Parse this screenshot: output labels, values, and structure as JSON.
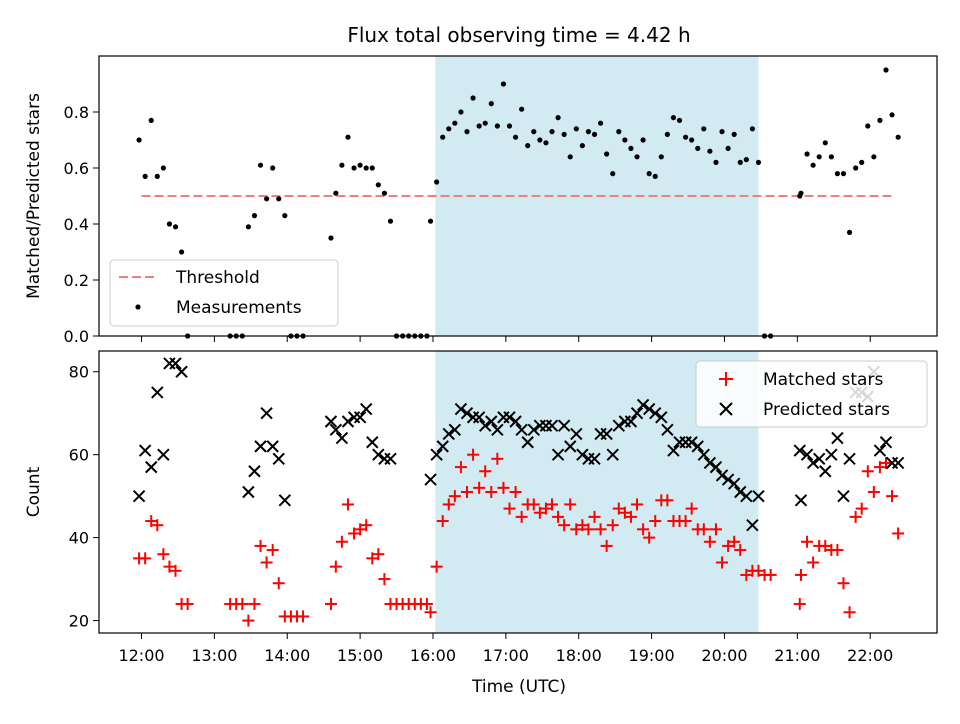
{
  "title": "Flux total observing time = 4.42 h",
  "colors": {
    "threshold": "#f08080",
    "measurement": "#000000",
    "matched": "#ff0000",
    "predicted": "#000000",
    "shade": "#add8e6"
  },
  "chart_data": [
    {
      "type": "scatter",
      "ylabel": "Matched/Predicted stars",
      "ylim": [
        0,
        1.0
      ],
      "yticks": [
        0.0,
        0.2,
        0.4,
        0.6,
        0.8
      ],
      "ytick_labels": [
        "0.0",
        "0.2",
        "0.4",
        "0.6",
        "0.8"
      ],
      "shaded_span": [
        "16:02",
        "20:28"
      ],
      "legend": {
        "position": "lower-left",
        "entries": [
          "Threshold",
          "Measurements"
        ]
      },
      "threshold": {
        "name": "Threshold",
        "value": 0.5,
        "x_range": [
          "12:00",
          "22:20"
        ]
      },
      "measurements": {
        "name": "Measurements",
        "x": [
          "11:58",
          "12:03",
          "12:08",
          "12:13",
          "12:18",
          "12:23",
          "12:28",
          "12:33",
          "12:38",
          "13:13",
          "13:18",
          "13:23",
          "13:28",
          "13:33",
          "13:38",
          "13:43",
          "13:48",
          "13:53",
          "13:58",
          "14:03",
          "14:08",
          "14:13",
          "14:36",
          "14:40",
          "14:45",
          "14:50",
          "14:55",
          "15:00",
          "15:05",
          "15:10",
          "15:15",
          "15:20",
          "15:25",
          "15:30",
          "15:35",
          "15:40",
          "15:45",
          "15:50",
          "15:55",
          "15:58",
          "16:03",
          "16:08",
          "16:13",
          "16:18",
          "16:23",
          "16:28",
          "16:33",
          "16:38",
          "16:43",
          "16:48",
          "16:53",
          "16:58",
          "17:03",
          "17:08",
          "17:13",
          "17:18",
          "17:23",
          "17:28",
          "17:33",
          "17:38",
          "17:43",
          "17:48",
          "17:53",
          "17:58",
          "18:03",
          "18:08",
          "18:13",
          "18:18",
          "18:23",
          "18:28",
          "18:33",
          "18:38",
          "18:43",
          "18:48",
          "18:53",
          "18:58",
          "19:03",
          "19:08",
          "19:13",
          "19:18",
          "19:23",
          "19:28",
          "19:33",
          "19:38",
          "19:43",
          "19:48",
          "19:53",
          "19:58",
          "20:03",
          "20:08",
          "20:13",
          "20:18",
          "20:23",
          "20:28",
          "20:33",
          "20:38",
          "21:02",
          "21:03",
          "21:08",
          "21:13",
          "21:18",
          "21:23",
          "21:28",
          "21:33",
          "21:38",
          "21:43",
          "21:48",
          "21:53",
          "21:58",
          "22:03",
          "22:08",
          "22:13",
          "22:18",
          "22:23"
        ],
        "y": [
          0.7,
          0.57,
          0.77,
          0.57,
          0.6,
          0.4,
          0.39,
          0.3,
          0.0,
          0.0,
          0.0,
          0.0,
          0.39,
          0.43,
          0.61,
          0.49,
          0.6,
          0.49,
          0.43,
          0.0,
          0.0,
          0.0,
          0.35,
          0.51,
          0.61,
          0.71,
          0.6,
          0.61,
          0.6,
          0.6,
          0.54,
          0.51,
          0.41,
          0.0,
          0.0,
          0.0,
          0.0,
          0.0,
          0.0,
          0.41,
          0.55,
          0.71,
          0.74,
          0.76,
          0.8,
          0.73,
          0.85,
          0.75,
          0.76,
          0.83,
          0.75,
          0.9,
          0.75,
          0.71,
          0.81,
          0.68,
          0.73,
          0.7,
          0.69,
          0.73,
          0.78,
          0.72,
          0.64,
          0.74,
          0.68,
          0.73,
          0.72,
          0.76,
          0.65,
          0.58,
          0.73,
          0.7,
          0.67,
          0.64,
          0.7,
          0.58,
          0.57,
          0.64,
          0.72,
          0.78,
          0.77,
          0.71,
          0.7,
          0.67,
          0.74,
          0.66,
          0.62,
          0.73,
          0.67,
          0.72,
          0.62,
          0.63,
          0.74,
          0.62,
          0.0,
          0.0,
          0.5,
          0.51,
          0.65,
          0.61,
          0.64,
          0.69,
          0.64,
          0.58,
          0.58,
          0.37,
          0.6,
          0.62,
          0.75,
          0.64,
          0.77,
          0.95,
          0.79,
          0.71
        ]
      }
    },
    {
      "type": "scatter",
      "xlabel": "Time (UTC)",
      "ylabel": "Count",
      "ylim": [
        17,
        85
      ],
      "yticks": [
        20,
        40,
        60,
        80
      ],
      "ytick_labels": [
        "20",
        "40",
        "60",
        "80"
      ],
      "xlim": [
        "11:25",
        "22:55"
      ],
      "xticks": [
        "12:00",
        "13:00",
        "14:00",
        "15:00",
        "16:00",
        "17:00",
        "18:00",
        "19:00",
        "20:00",
        "21:00",
        "22:00"
      ],
      "shaded_span": [
        "16:02",
        "20:28"
      ],
      "legend": {
        "position": "upper-right",
        "entries": [
          "Matched stars",
          "Predicted stars"
        ]
      },
      "series": [
        {
          "name": "Matched stars",
          "marker": "plus",
          "x": [
            "11:58",
            "12:03",
            "12:08",
            "12:13",
            "12:18",
            "12:23",
            "12:28",
            "12:33",
            "12:38",
            "13:13",
            "13:18",
            "13:23",
            "13:28",
            "13:33",
            "13:38",
            "13:43",
            "13:48",
            "13:53",
            "13:58",
            "14:03",
            "14:08",
            "14:13",
            "14:36",
            "14:40",
            "14:45",
            "14:50",
            "14:55",
            "15:00",
            "15:05",
            "15:10",
            "15:15",
            "15:20",
            "15:25",
            "15:30",
            "15:35",
            "15:40",
            "15:45",
            "15:50",
            "15:55",
            "15:58",
            "16:03",
            "16:08",
            "16:13",
            "16:18",
            "16:23",
            "16:28",
            "16:33",
            "16:38",
            "16:43",
            "16:48",
            "16:53",
            "16:58",
            "17:03",
            "17:08",
            "17:13",
            "17:18",
            "17:23",
            "17:28",
            "17:33",
            "17:38",
            "17:43",
            "17:48",
            "17:53",
            "17:58",
            "18:03",
            "18:08",
            "18:13",
            "18:18",
            "18:23",
            "18:28",
            "18:33",
            "18:38",
            "18:43",
            "18:48",
            "18:53",
            "18:58",
            "19:03",
            "19:08",
            "19:13",
            "19:18",
            "19:23",
            "19:28",
            "19:33",
            "19:38",
            "19:43",
            "19:48",
            "19:53",
            "19:58",
            "20:03",
            "20:08",
            "20:13",
            "20:18",
            "20:23",
            "20:28",
            "20:33",
            "20:38",
            "21:02",
            "21:03",
            "21:08",
            "21:13",
            "21:18",
            "21:23",
            "21:28",
            "21:33",
            "21:38",
            "21:43",
            "21:48",
            "21:53",
            "21:58",
            "22:03",
            "22:08",
            "22:13",
            "22:18",
            "22:23"
          ],
          "y": [
            35,
            35,
            44,
            43,
            36,
            33,
            32,
            24,
            24,
            24,
            24,
            24,
            20,
            24,
            38,
            34,
            37,
            29,
            21,
            21,
            21,
            21,
            24,
            33,
            39,
            48,
            41,
            42,
            43,
            35,
            36,
            30,
            24,
            24,
            24,
            24,
            24,
            24,
            24,
            22,
            33,
            44,
            48,
            50,
            57,
            51,
            60,
            52,
            56,
            51,
            59,
            52,
            47,
            51,
            45,
            48,
            48,
            46,
            47,
            48,
            45,
            43,
            48,
            42,
            43,
            42,
            45,
            42,
            38,
            43,
            47,
            46,
            45,
            48,
            42,
            40,
            44,
            49,
            49,
            44,
            44,
            44,
            47,
            42,
            42,
            39,
            42,
            34,
            38,
            39,
            37,
            31,
            32,
            32,
            31,
            31,
            24,
            31,
            39,
            34,
            38,
            38,
            37,
            37,
            29,
            22,
            45,
            47,
            56,
            51,
            57,
            58,
            50,
            41
          ]
        },
        {
          "name": "Predicted stars",
          "marker": "x",
          "x": [
            "11:58",
            "12:03",
            "12:08",
            "12:13",
            "12:18",
            "12:23",
            "12:28",
            "12:33",
            "13:28",
            "13:33",
            "13:38",
            "13:43",
            "13:48",
            "13:53",
            "13:58",
            "14:36",
            "14:40",
            "14:45",
            "14:50",
            "14:55",
            "15:00",
            "15:05",
            "15:10",
            "15:15",
            "15:20",
            "15:25",
            "15:58",
            "16:03",
            "16:08",
            "16:13",
            "16:18",
            "16:23",
            "16:28",
            "16:33",
            "16:38",
            "16:43",
            "16:48",
            "16:53",
            "16:58",
            "17:03",
            "17:08",
            "17:13",
            "17:18",
            "17:23",
            "17:28",
            "17:33",
            "17:38",
            "17:43",
            "17:48",
            "17:53",
            "17:58",
            "18:03",
            "18:08",
            "18:13",
            "18:18",
            "18:23",
            "18:28",
            "18:33",
            "18:38",
            "18:43",
            "18:48",
            "18:53",
            "18:58",
            "19:03",
            "19:08",
            "19:13",
            "19:18",
            "19:23",
            "19:28",
            "19:33",
            "19:38",
            "19:43",
            "19:48",
            "19:53",
            "19:58",
            "20:03",
            "20:08",
            "20:13",
            "20:18",
            "20:23",
            "20:28",
            "21:02",
            "21:03",
            "21:08",
            "21:13",
            "21:18",
            "21:23",
            "21:28",
            "21:33",
            "21:38",
            "21:43",
            "21:48",
            "21:53",
            "21:58",
            "22:03",
            "22:08",
            "22:13",
            "22:18",
            "22:23"
          ],
          "y": [
            50,
            61,
            57,
            75,
            60,
            82,
            82,
            80,
            51,
            56,
            62,
            70,
            62,
            59,
            49,
            68,
            66,
            64,
            68,
            69,
            69,
            71,
            63,
            60,
            59,
            59,
            54,
            60,
            62,
            65,
            66,
            71,
            70,
            69,
            69,
            67,
            68,
            66,
            69,
            69,
            68,
            66,
            63,
            66,
            67,
            67,
            67,
            60,
            67,
            62,
            65,
            60,
            59,
            59,
            65,
            65,
            60,
            67,
            68,
            68,
            70,
            72,
            71,
            70,
            69,
            66,
            61,
            63,
            63,
            63,
            62,
            60,
            58,
            57,
            55,
            54,
            53,
            51,
            50,
            43,
            50,
            61,
            49,
            60,
            58,
            59,
            56,
            60,
            64,
            50,
            59,
            75,
            75,
            74,
            80,
            61,
            63,
            58,
            58
          ]
        }
      ]
    }
  ]
}
